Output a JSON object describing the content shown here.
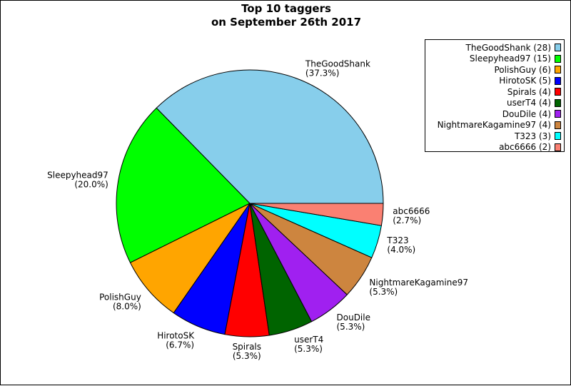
{
  "chart_data": {
    "type": "pie",
    "title": [
      "Top 10 taggers",
      "on September 26th 2017"
    ],
    "slices": [
      {
        "name": "TheGoodShank",
        "count": 28,
        "percent": "37.3%",
        "color": "#87ceeb"
      },
      {
        "name": "Sleepyhead97",
        "count": 15,
        "percent": "20.0%",
        "color": "#00ff00"
      },
      {
        "name": "PolishGuy",
        "count": 6,
        "percent": "8.0%",
        "color": "#ffa500"
      },
      {
        "name": "HirotoSK",
        "count": 5,
        "percent": "6.7%",
        "color": "#0000ff"
      },
      {
        "name": "Spirals",
        "count": 4,
        "percent": "5.3%",
        "color": "#ff0000"
      },
      {
        "name": "userT4",
        "count": 4,
        "percent": "5.3%",
        "color": "#006400"
      },
      {
        "name": "DouDile",
        "count": 4,
        "percent": "5.3%",
        "color": "#a020f0"
      },
      {
        "name": "NightmareKagamine97",
        "count": 4,
        "percent": "5.3%",
        "color": "#cd853f"
      },
      {
        "name": "T323",
        "count": 3,
        "percent": "4.0%",
        "color": "#00ffff"
      },
      {
        "name": "abc6666",
        "count": 2,
        "percent": "2.7%",
        "color": "#fa8072"
      }
    ],
    "legend_placement": "top-right"
  }
}
